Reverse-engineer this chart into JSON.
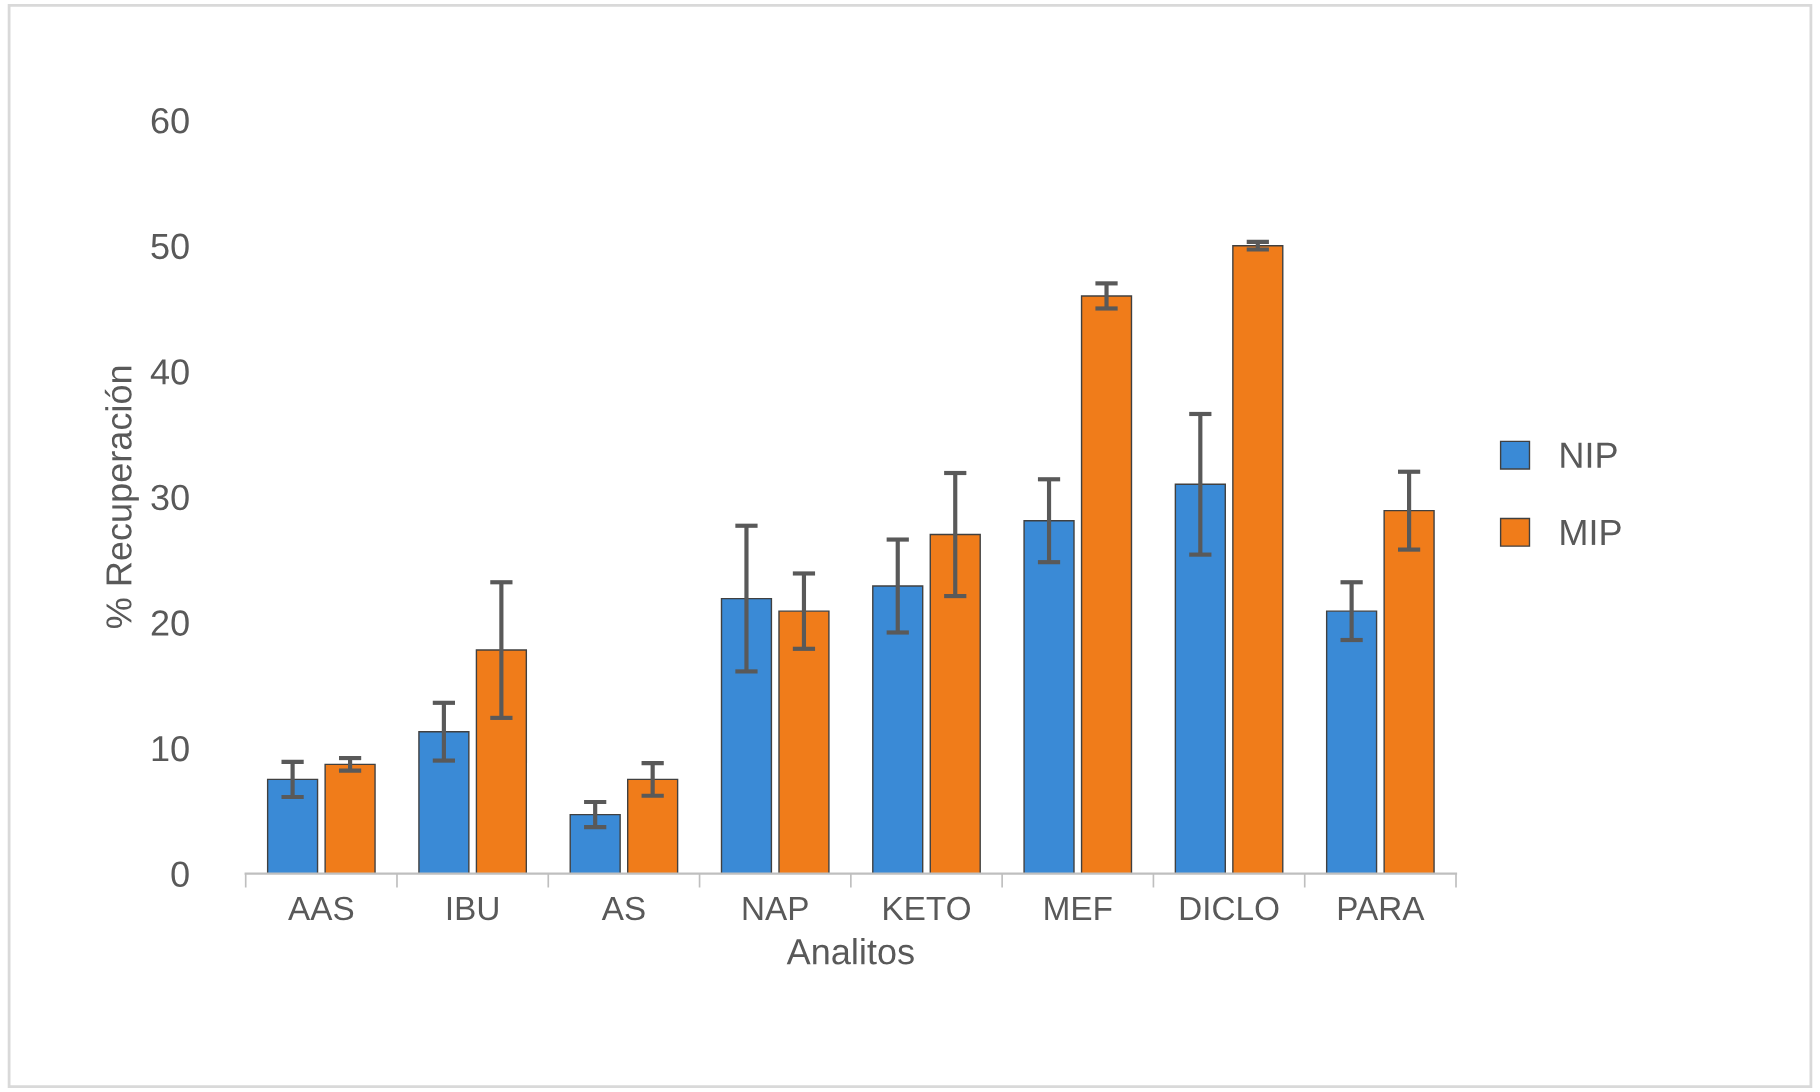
{
  "chart_data": {
    "type": "bar",
    "xlabel": "Analitos",
    "ylabel": "% Recuperación",
    "categories": [
      "AAS",
      "IBU",
      "AS",
      "NAP",
      "KETO",
      "MEF",
      "DICLO",
      "PARA"
    ],
    "series": [
      {
        "name": "NIP",
        "color": "#3a8ad6",
        "values": [
          7.5,
          11.3,
          4.7,
          21.9,
          22.9,
          28.1,
          31.0,
          20.9
        ],
        "errors": [
          1.4,
          2.3,
          1.0,
          5.8,
          3.7,
          3.3,
          5.6,
          2.3
        ]
      },
      {
        "name": "MIP",
        "color": "#f07c1a",
        "values": [
          8.7,
          17.8,
          7.5,
          20.9,
          27.0,
          46.0,
          50.0,
          28.9
        ],
        "errors": [
          0.5,
          5.4,
          1.3,
          3.0,
          4.9,
          1.0,
          0.3,
          3.1
        ]
      }
    ],
    "ylim": [
      0,
      60
    ],
    "yticks": [
      0,
      10,
      20,
      30,
      40,
      50,
      60
    ],
    "grid": false,
    "legend": "right"
  }
}
